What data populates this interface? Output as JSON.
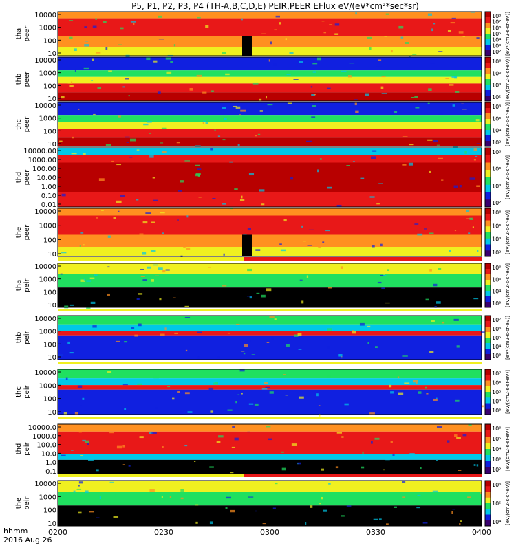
{
  "title": "P5, P1, P2, P3, P4 (TH-A,B,C,D,E) PEIR,PEER EFlux eV/(eV*cm²*sec*sr)",
  "colors": {
    "black": "#000000",
    "purple": "#3a0070",
    "blue": "#1020e0",
    "cyan": "#00c8e8",
    "green": "#20e060",
    "yellow": "#f0f020",
    "orange": "#ff9020",
    "red": "#e81818",
    "darkred": "#b80000"
  },
  "chart_data": [
    {
      "type": "heatmap",
      "probe": "tha",
      "species": "peer",
      "ylabel": [
        "tha",
        "peer"
      ],
      "yticks": [
        "10000",
        "1000",
        "100",
        "10"
      ],
      "yscale": "log",
      "cbar_ticks": [
        "10⁸",
        "10⁷",
        "10⁶",
        "10⁵",
        "10⁴",
        "10³",
        "10²"
      ],
      "unit_label": "[eV/(cm2-s-sr-eV)]"
    },
    {
      "type": "heatmap",
      "probe": "thb",
      "species": "peer",
      "ylabel": [
        "thb",
        "peer"
      ],
      "yticks": [
        "10000",
        "1000",
        "100",
        "10"
      ],
      "yscale": "log",
      "cbar_ticks": [
        "10⁸",
        "10⁶",
        "10⁴",
        "10²"
      ],
      "unit_label": "[eV/(cm2-s-sr-eV)]"
    },
    {
      "type": "heatmap",
      "probe": "thc",
      "species": "peer",
      "ylabel": [
        "thc",
        "peer"
      ],
      "yticks": [
        "10000",
        "1000",
        "100",
        "10"
      ],
      "yscale": "log",
      "cbar_ticks": [
        "10⁸",
        "10⁶",
        "10⁴",
        "10²"
      ],
      "unit_label": "[eV/(cm2-s-sr-eV)]"
    },
    {
      "type": "heatmap",
      "probe": "thd",
      "species": "peer",
      "ylabel": [
        "thd",
        "peer"
      ],
      "yticks": [
        "10000.00",
        "1000.00",
        "100.00",
        "10.00",
        "1.00",
        "0.10",
        "0.01"
      ],
      "yscale": "log",
      "cbar_ticks": [
        "10⁸",
        "10⁶",
        "10⁴",
        "10²"
      ],
      "unit_label": "[eV/(cm2-s-sr-eV)]"
    },
    {
      "type": "heatmap",
      "probe": "the",
      "species": "peer",
      "ylabel": [
        "the",
        "peer"
      ],
      "yticks": [
        "10000",
        "1000",
        "100",
        "10"
      ],
      "yscale": "log",
      "cbar_ticks": [
        "10⁸",
        "10⁶",
        "10⁴",
        "10²"
      ],
      "unit_label": "[eV/(cm2-s-sr-eV)]"
    },
    {
      "type": "heatmap",
      "probe": "tha",
      "species": "peir",
      "ylabel": [
        "tha",
        "peir"
      ],
      "yticks": [
        "10000",
        "1000",
        "100",
        "10"
      ],
      "yscale": "log",
      "cbar_ticks": [
        "10⁶",
        "10⁵",
        "10⁴",
        "10³"
      ],
      "unit_label": "[eV/(cm2-s-sr-eV)]"
    },
    {
      "type": "heatmap",
      "probe": "thb",
      "species": "peir",
      "ylabel": [
        "thb",
        "peir"
      ],
      "yticks": [
        "10000",
        "1000",
        "100",
        "10"
      ],
      "yscale": "log",
      "cbar_ticks": [
        "10⁷",
        "10⁶",
        "10⁵",
        "10⁴",
        "10³"
      ],
      "unit_label": "[eV/(cm2-s-sr-eV)]"
    },
    {
      "type": "heatmap",
      "probe": "thc",
      "species": "peir",
      "ylabel": [
        "thc",
        "peir"
      ],
      "yticks": [
        "10000",
        "1000",
        "100",
        "10"
      ],
      "yscale": "log",
      "cbar_ticks": [
        "10⁷",
        "10⁶",
        "10⁵",
        "10⁴",
        "10³"
      ],
      "unit_label": "[eV/(cm2-s-sr-eV)]"
    },
    {
      "type": "heatmap",
      "probe": "thd",
      "species": "peir",
      "ylabel": [
        "thd",
        "peir"
      ],
      "yticks": [
        "10000.0",
        "1000.0",
        "100.0",
        "10.0",
        "1.0",
        "0.1"
      ],
      "yscale": "log",
      "cbar_ticks": [
        "10⁶",
        "10⁵",
        "10⁴",
        "10³",
        "10²"
      ],
      "unit_label": "[eV/(cm2-s-sr-eV)]"
    },
    {
      "type": "heatmap",
      "probe": "the",
      "species": "peir",
      "ylabel": [
        "the",
        "peir"
      ],
      "yticks": [
        "10000",
        "1000",
        "100",
        "10"
      ],
      "yscale": "log",
      "cbar_ticks": [
        "10⁶",
        "10⁵",
        "10⁴"
      ],
      "unit_label": "[eV/(cm2-s-sr-eV)]"
    }
  ],
  "xaxis": {
    "label_line1": "hhmm",
    "label_line2": "2016 Aug 26",
    "ticks": [
      "0200",
      "0230",
      "0300",
      "0330",
      "0400"
    ],
    "range": [
      "02:00",
      "04:00"
    ]
  },
  "unit_label": "[eV/(cm2-s-sr-eV)]"
}
